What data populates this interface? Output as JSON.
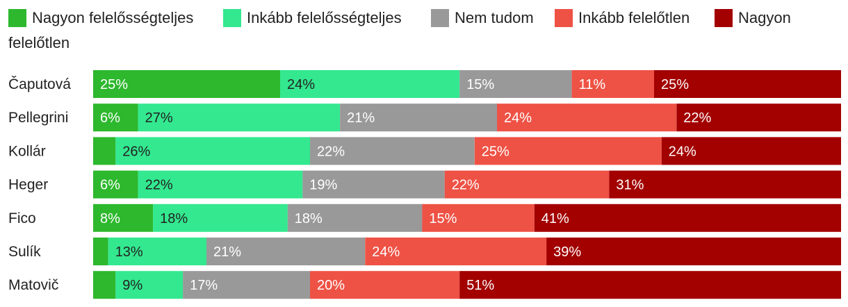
{
  "chart_data": {
    "type": "bar",
    "orientation": "horizontal",
    "stacked": true,
    "title": "",
    "xlabel": "",
    "ylabel": "",
    "xlim": [
      0,
      100
    ],
    "grid": false,
    "legend_position": "top",
    "categories": [
      "Čaputová",
      "Pellegrini",
      "Kollár",
      "Heger",
      "Fico",
      "Sulík",
      "Matovič"
    ],
    "series": [
      {
        "name": "Nagyon felelősségteljes",
        "color": "#2db82d",
        "label_color": "#ffffff",
        "values": [
          25,
          6,
          3,
          6,
          8,
          2,
          3
        ],
        "labels": [
          "25%",
          "6%",
          "",
          "6%",
          "8%",
          "",
          ""
        ]
      },
      {
        "name": "Inkább felelősségteljes",
        "color": "#33e88f",
        "label_color": "#222222",
        "values": [
          24,
          27,
          26,
          22,
          18,
          13,
          9
        ],
        "labels": [
          "24%",
          "27%",
          "26%",
          "22%",
          "18%",
          "13%",
          "9%"
        ]
      },
      {
        "name": "Nem tudom",
        "color": "#999999",
        "label_color": "#ffffff",
        "values": [
          15,
          21,
          22,
          19,
          18,
          21,
          17
        ],
        "labels": [
          "15%",
          "21%",
          "22%",
          "19%",
          "18%",
          "21%",
          "17%"
        ]
      },
      {
        "name": "Inkább felelőtlen",
        "color": "#ee5245",
        "label_color": "#ffffff",
        "values": [
          11,
          24,
          25,
          22,
          15,
          24,
          20
        ],
        "labels": [
          "11%",
          "24%",
          "25%",
          "22%",
          "15%",
          "24%",
          "20%"
        ]
      },
      {
        "name": "Nagyon felelőtlen",
        "color": "#a30000",
        "label_color": "#ffffff",
        "values": [
          25,
          22,
          24,
          31,
          41,
          39,
          51
        ],
        "labels": [
          "25%",
          "22%",
          "24%",
          "31%",
          "41%",
          "39%",
          "51%"
        ]
      }
    ]
  }
}
